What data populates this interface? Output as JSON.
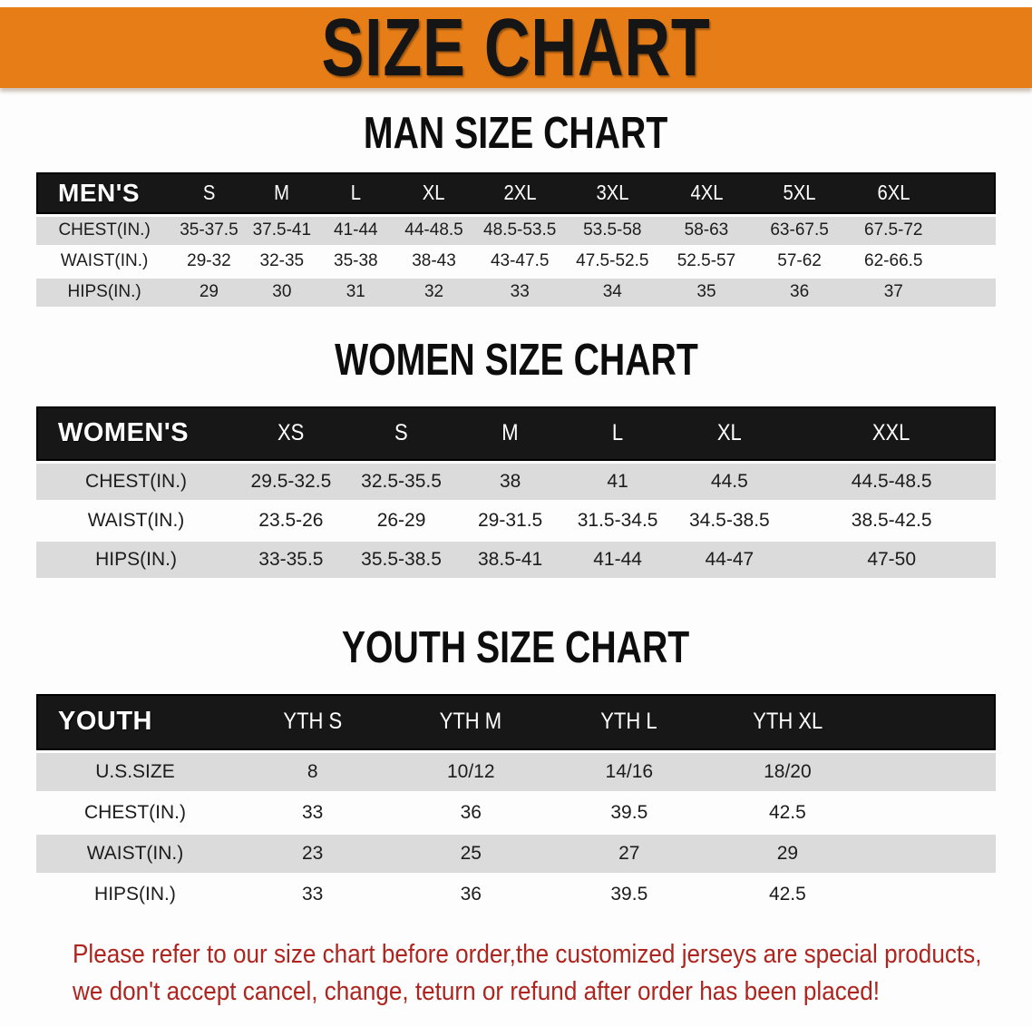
{
  "banner": {
    "title": "SIZE CHART"
  },
  "sections": [
    {
      "heading": "MAN SIZE CHART",
      "group_label": "MEN'S",
      "columns": [
        "S",
        "M",
        "L",
        "XL",
        "2XL",
        "3XL",
        "4XL",
        "5XL",
        "6XL"
      ],
      "rows": [
        {
          "label": "CHEST(IN.)",
          "values": [
            "35-37.5",
            "37.5-41",
            "41-44",
            "44-48.5",
            "48.5-53.5",
            "53.5-58",
            "58-63",
            "63-67.5",
            "67.5-72"
          ]
        },
        {
          "label": "WAIST(IN.)",
          "values": [
            "29-32",
            "32-35",
            "35-38",
            "38-43",
            "43-47.5",
            "47.5-52.5",
            "52.5-57",
            "57-62",
            "62-66.5"
          ]
        },
        {
          "label": "HIPS(IN.)",
          "values": [
            "29",
            "30",
            "31",
            "32",
            "33",
            "34",
            "35",
            "36",
            "37"
          ]
        }
      ]
    },
    {
      "heading": "WOMEN SIZE CHART",
      "group_label": "WOMEN'S",
      "columns": [
        "XS",
        "S",
        "M",
        "L",
        "XL",
        "XXL"
      ],
      "rows": [
        {
          "label": "CHEST(IN.)",
          "values": [
            "29.5-32.5",
            "32.5-35.5",
            "38",
            "41",
            "44.5",
            "44.5-48.5"
          ]
        },
        {
          "label": "WAIST(IN.)",
          "values": [
            "23.5-26",
            "26-29",
            "29-31.5",
            "31.5-34.5",
            "34.5-38.5",
            "38.5-42.5"
          ]
        },
        {
          "label": "HIPS(IN.)",
          "values": [
            "33-35.5",
            "35.5-38.5",
            "38.5-41",
            "41-44",
            "44-47",
            "47-50"
          ]
        }
      ]
    },
    {
      "heading": "YOUTH SIZE CHART",
      "group_label": "YOUTH",
      "columns": [
        "YTH S",
        "YTH M",
        "YTH L",
        "YTH XL"
      ],
      "rows": [
        {
          "label": "U.S.SIZE",
          "values": [
            "8",
            "10/12",
            "14/16",
            "18/20"
          ]
        },
        {
          "label": "CHEST(IN.)",
          "values": [
            "33",
            "36",
            "39.5",
            "42.5"
          ]
        },
        {
          "label": "WAIST(IN.)",
          "values": [
            "23",
            "25",
            "27",
            "29"
          ]
        },
        {
          "label": "HIPS(IN.)",
          "values": [
            "33",
            "36",
            "39.5",
            "42.5"
          ]
        }
      ]
    }
  ],
  "disclaimer": {
    "line1": "Please refer to our size chart before order,the customized jerseys are special products,",
    "line2": "we don't accept cancel, change, teturn or refund after order has been placed!"
  },
  "colors": {
    "banner_orange": "#E67D17",
    "header_black": "#171717",
    "row_gray": "#DBDBDB",
    "disclaimer_red": "#AE251F"
  }
}
